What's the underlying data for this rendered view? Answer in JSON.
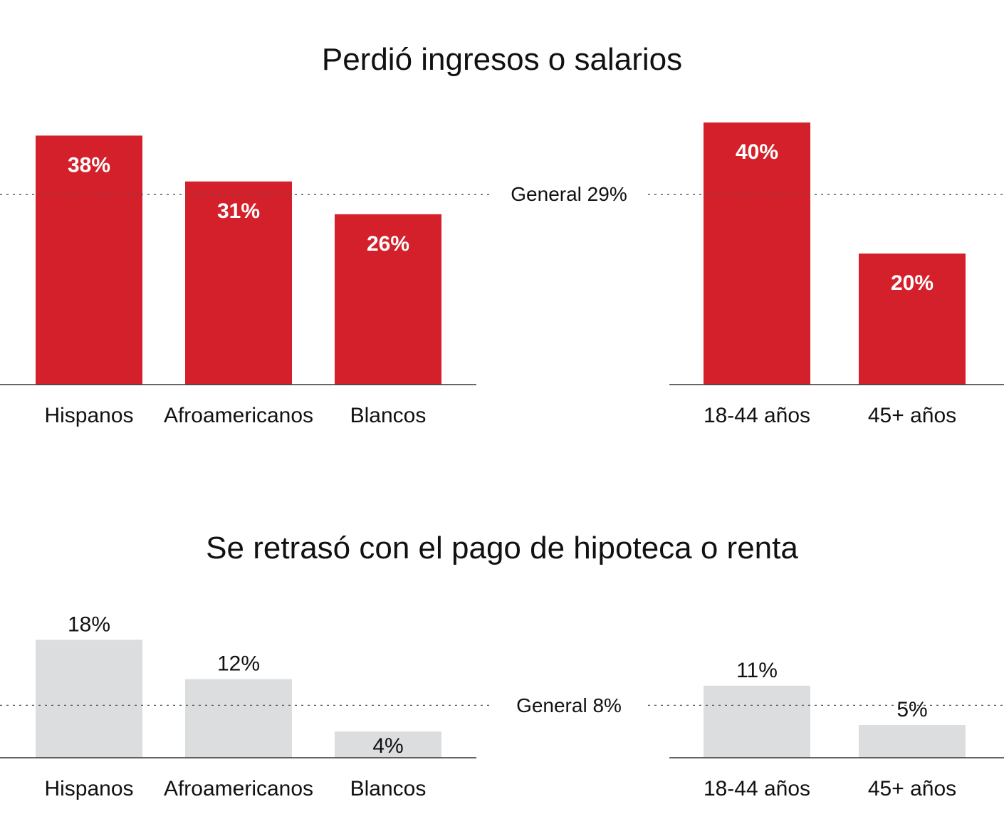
{
  "chart_data": [
    {
      "type": "bar",
      "title": "Perdió ingresos o salarios",
      "unit": "%",
      "color": "#d4202a",
      "reference": {
        "label": "General 29%",
        "value": 29
      },
      "groups": [
        {
          "categories": [
            "Hispanos",
            "Afroamericanos",
            "Blancos"
          ],
          "values": [
            38,
            31,
            26
          ],
          "labels": [
            "38%",
            "31%",
            "26%"
          ]
        },
        {
          "categories": [
            "18-44 años",
            "45+ años"
          ],
          "values": [
            40,
            20
          ],
          "labels": [
            "40%",
            "20%"
          ]
        }
      ]
    },
    {
      "type": "bar",
      "title": "Se retrasó con el pago de hipoteca o renta",
      "unit": "%",
      "color": "#dcdddf",
      "reference": {
        "label": "General 8%",
        "value": 8
      },
      "groups": [
        {
          "categories": [
            "Hispanos",
            "Afroamericanos",
            "Blancos"
          ],
          "values": [
            18,
            12,
            4
          ],
          "labels": [
            "18%",
            "12%",
            "4%"
          ]
        },
        {
          "categories": [
            "18-44 años",
            "45+ años"
          ],
          "values": [
            11,
            5
          ],
          "labels": [
            "11%",
            "5%"
          ]
        }
      ]
    }
  ]
}
